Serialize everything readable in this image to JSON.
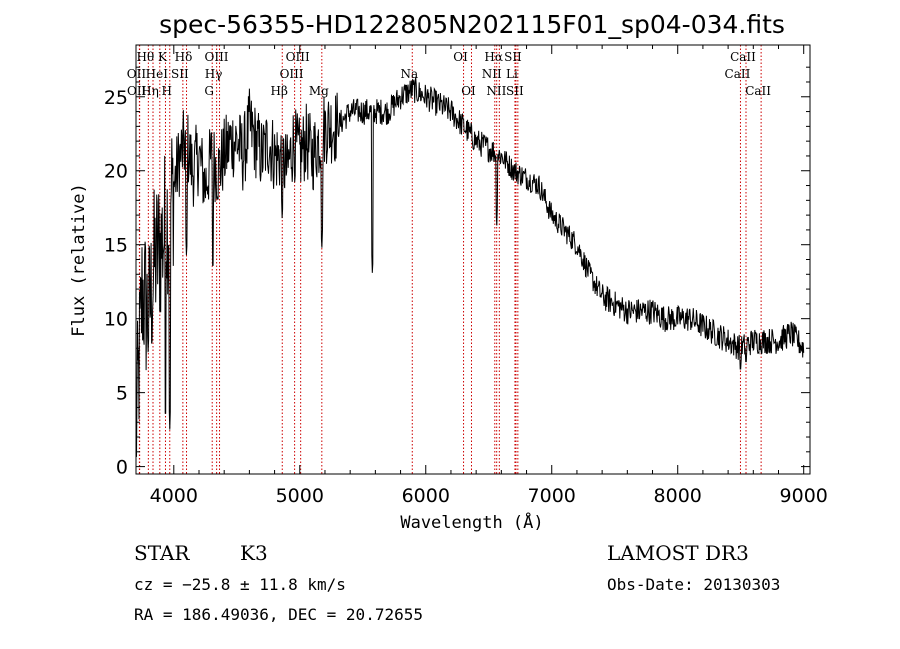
{
  "title": "spec-56355-HD122805N202115F01_sp04-034.fits",
  "info": {
    "object_class": "STAR",
    "subclass": "K3",
    "survey": "LAMOST DR3",
    "cz": "cz = −25.8 ± 11.8 km/s",
    "obs_date": "Obs-Date: 20130303",
    "coords": "RA = 186.49036, DEC =  20.72655"
  },
  "colors": {
    "spectrum": "#000000",
    "line_marker": "#cc0000",
    "frame": "#000000"
  },
  "chart_data": {
    "type": "line",
    "title": "spec-56355-HD122805N202115F01_sp04-034.fits",
    "xlabel": "Wavelength (Å)",
    "ylabel": "Flux (relative)",
    "xlim": [
      3700,
      9050
    ],
    "ylim": [
      -0.5,
      28.5
    ],
    "xticks": [
      4000,
      5000,
      6000,
      7000,
      8000,
      9000
    ],
    "yticks": [
      0,
      5,
      10,
      15,
      20,
      25
    ],
    "series": [
      {
        "name": "flux",
        "x": [
          3700,
          3750,
          3800,
          3850,
          3900,
          3950,
          4000,
          4050,
          4100,
          4150,
          4200,
          4250,
          4300,
          4350,
          4400,
          4450,
          4500,
          4550,
          4600,
          4650,
          4700,
          4750,
          4800,
          4850,
          4900,
          4950,
          5000,
          5050,
          5100,
          5150,
          5200,
          5300,
          5400,
          5500,
          5600,
          5700,
          5800,
          5900,
          6000,
          6100,
          6200,
          6300,
          6400,
          6500,
          6600,
          6700,
          6800,
          6900,
          7000,
          7100,
          7200,
          7300,
          7400,
          7500,
          7600,
          7700,
          7800,
          7900,
          8000,
          8100,
          8200,
          8300,
          8400,
          8500,
          8600,
          8700,
          8800,
          8900,
          9000
        ],
        "y": [
          2,
          12,
          10,
          14,
          15,
          17,
          19,
          21,
          22,
          20,
          21,
          19,
          21,
          20,
          21,
          22,
          22,
          21,
          23,
          22,
          21,
          22,
          21,
          21,
          20,
          22,
          21,
          22,
          21,
          22,
          23,
          23,
          24,
          24,
          24,
          24,
          25,
          25.5,
          25,
          24.5,
          24,
          23,
          22,
          21.5,
          21,
          20,
          19.5,
          19,
          17,
          16,
          15,
          13,
          11.5,
          11,
          10.5,
          10.5,
          10.5,
          10,
          10,
          10,
          9.5,
          9,
          8.5,
          8,
          8.5,
          8.5,
          8.5,
          9,
          8
        ],
        "absorption_features": [
          {
            "x": 3934,
            "y": 3.0
          },
          {
            "x": 3968,
            "y": 2.5
          },
          {
            "x": 4101,
            "y": 14.0
          },
          {
            "x": 4310,
            "y": 13.0
          },
          {
            "x": 4861,
            "y": 16.5
          },
          {
            "x": 5175,
            "y": 14.5
          },
          {
            "x": 5577,
            "y": 12.8
          },
          {
            "x": 6563,
            "y": 16.0
          },
          {
            "x": 8498,
            "y": 6.0
          },
          {
            "x": 8542,
            "y": 6.5
          }
        ]
      }
    ],
    "spectral_lines": [
      {
        "label": "Hθ",
        "wavelength": 3798,
        "row": 1
      },
      {
        "label": "OII",
        "wavelength": 3727,
        "row": 2
      },
      {
        "label": "OII",
        "wavelength": 3729,
        "row": 3
      },
      {
        "label": "K",
        "wavelength": 3934,
        "row": 1
      },
      {
        "label": "HeI",
        "wavelength": 3889,
        "row": 2
      },
      {
        "label": "Hη",
        "wavelength": 3835,
        "row": 3
      },
      {
        "label": "Hδ",
        "wavelength": 4101,
        "row": 1
      },
      {
        "label": "SII",
        "wavelength": 4072,
        "row": 2
      },
      {
        "label": "H",
        "wavelength": 3968,
        "row": 3
      },
      {
        "label": "OIII",
        "wavelength": 4363,
        "row": 1
      },
      {
        "label": "Hγ",
        "wavelength": 4340,
        "row": 2
      },
      {
        "label": "G",
        "wavelength": 4305,
        "row": 3
      },
      {
        "label": "OIII",
        "wavelength": 5007,
        "row": 1
      },
      {
        "label": "OIII",
        "wavelength": 4959,
        "row": 2
      },
      {
        "label": "Hβ",
        "wavelength": 4861,
        "row": 3
      },
      {
        "label": "Mg",
        "wavelength": 5175,
        "row": 3
      },
      {
        "label": "Na",
        "wavelength": 5893,
        "row": 2
      },
      {
        "label": "OI",
        "wavelength": 6300,
        "row": 1
      },
      {
        "label": "OI",
        "wavelength": 6363,
        "row": 3
      },
      {
        "label": "Hα",
        "wavelength": 6563,
        "row": 1
      },
      {
        "label": "SII",
        "wavelength": 6716,
        "row": 1
      },
      {
        "label": "NII",
        "wavelength": 6548,
        "row": 2
      },
      {
        "label": "Li",
        "wavelength": 6708,
        "row": 2
      },
      {
        "label": "NII",
        "wavelength": 6584,
        "row": 3
      },
      {
        "label": "SII",
        "wavelength": 6731,
        "row": 3
      },
      {
        "label": "CaII",
        "wavelength": 8542,
        "row": 1
      },
      {
        "label": "CaII",
        "wavelength": 8498,
        "row": 2
      },
      {
        "label": "CaII",
        "wavelength": 8662,
        "row": 3
      }
    ]
  }
}
